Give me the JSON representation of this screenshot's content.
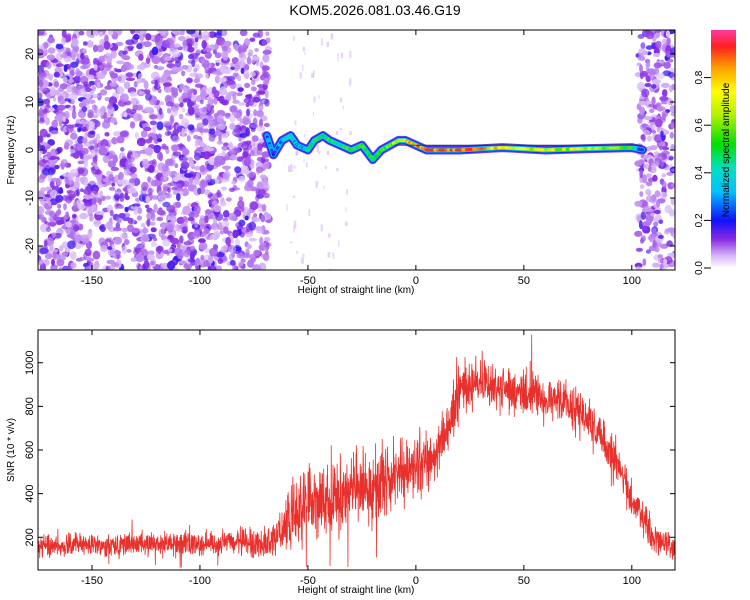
{
  "title": "KOM5.2026.081.03.46.G19",
  "chart_data": [
    {
      "type": "heatmap",
      "xlabel": "Height of straight line (km)",
      "ylabel": "Frequency (Hz)",
      "xlim": [
        -175,
        120
      ],
      "ylim": [
        -25,
        25
      ],
      "xticks": [
        -150,
        -100,
        -50,
        0,
        50,
        100
      ],
      "yticks": [
        -20,
        -10,
        0,
        10,
        20
      ],
      "colorbar": {
        "label": "Normalized spectral amplitude",
        "range": [
          0,
          1
        ],
        "ticks": [
          "0.0",
          "0.2",
          "0.4",
          "0.6",
          "0.8"
        ],
        "tick_values": [
          0,
          0.2,
          0.4,
          0.6,
          0.8
        ]
      },
      "noise_regions_km": [
        [
          -175,
          -68
        ],
        [
          103,
          120
        ]
      ],
      "signal_track": {
        "x": [
          -69,
          -66,
          -62,
          -58,
          -55,
          -50,
          -47,
          -43,
          -40,
          -35,
          -30,
          -25,
          -20,
          -16,
          -12,
          -8,
          -5,
          0,
          5,
          20,
          40,
          60,
          80,
          100,
          105
        ],
        "y": [
          3,
          -1,
          2,
          3,
          1,
          0,
          2,
          3,
          2,
          1,
          0,
          1,
          -2,
          0,
          1,
          2,
          2,
          1,
          0,
          0,
          0.5,
          0,
          0.3,
          0.5,
          0
        ],
        "amplitude": [
          0.3,
          0.2,
          0.35,
          0.4,
          0.35,
          0.45,
          0.5,
          0.45,
          0.55,
          0.5,
          0.55,
          0.6,
          0.5,
          0.6,
          0.65,
          0.75,
          0.8,
          0.9,
          0.95,
          1.0,
          0.8,
          0.7,
          0.75,
          0.55,
          0.2
        ]
      }
    },
    {
      "type": "line",
      "xlabel": "Height of straight line (km)",
      "ylabel": "SNR (10 * v/v)",
      "xlim": [
        -175,
        120
      ],
      "ylim": [
        50,
        1150
      ],
      "xticks": [
        -150,
        -100,
        -50,
        0,
        50,
        100
      ],
      "yticks": [
        200,
        400,
        600,
        800,
        1000
      ],
      "series": [
        {
          "name": "SNR",
          "color": "#e8302c",
          "envelope_x": [
            -175,
            -150,
            -120,
            -100,
            -80,
            -68,
            -60,
            -55,
            -50,
            -40,
            -30,
            -20,
            -10,
            0,
            10,
            15,
            20,
            30,
            40,
            50,
            60,
            70,
            80,
            90,
            100,
            110,
            120
          ],
          "envelope_mean": [
            160,
            165,
            170,
            170,
            175,
            175,
            250,
            320,
            380,
            360,
            420,
            430,
            480,
            520,
            580,
            700,
            880,
            920,
            880,
            860,
            840,
            820,
            740,
            600,
            380,
            200,
            150
          ],
          "envelope_spread": [
            70,
            75,
            80,
            80,
            90,
            100,
            180,
            250,
            260,
            230,
            250,
            230,
            220,
            200,
            200,
            180,
            170,
            160,
            150,
            150,
            150,
            150,
            150,
            140,
            130,
            100,
            80
          ]
        }
      ]
    }
  ]
}
